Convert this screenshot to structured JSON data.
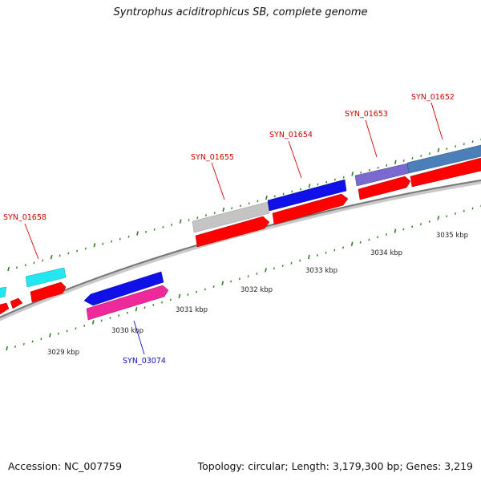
{
  "title": "Syntrophus aciditrophicus SB, complete genome",
  "footer": {
    "accession": "Accession: NC_007759",
    "topology": "Topology: circular; Length: 3,179,300 bp; Genes: 3,219"
  },
  "colors": {
    "backbone": "#8a8a8a",
    "tick": "#2e7d1e",
    "label_red": "#d00000",
    "label_blue": "#1010c0",
    "red_gene": "#ff0000",
    "cyan_gene": "#22e6f0",
    "blue_gene": "#1010e8",
    "magenta_gene": "#ee2a9a",
    "grey_gene": "#c4c4c4",
    "purple_gene": "#7a6ad0",
    "steel_gene": "#4a7fb8"
  },
  "kbp_labels": [
    "3029 kbp",
    "3030 kbp",
    "3031 kbp",
    "3032 kbp",
    "3033 kbp",
    "3034 kbp",
    "3035 kbp"
  ],
  "gene_labels": [
    "SYN_01658",
    "SYN_01655",
    "SYN_01654",
    "SYN_01653",
    "SYN_01652",
    "SYN_03074"
  ]
}
